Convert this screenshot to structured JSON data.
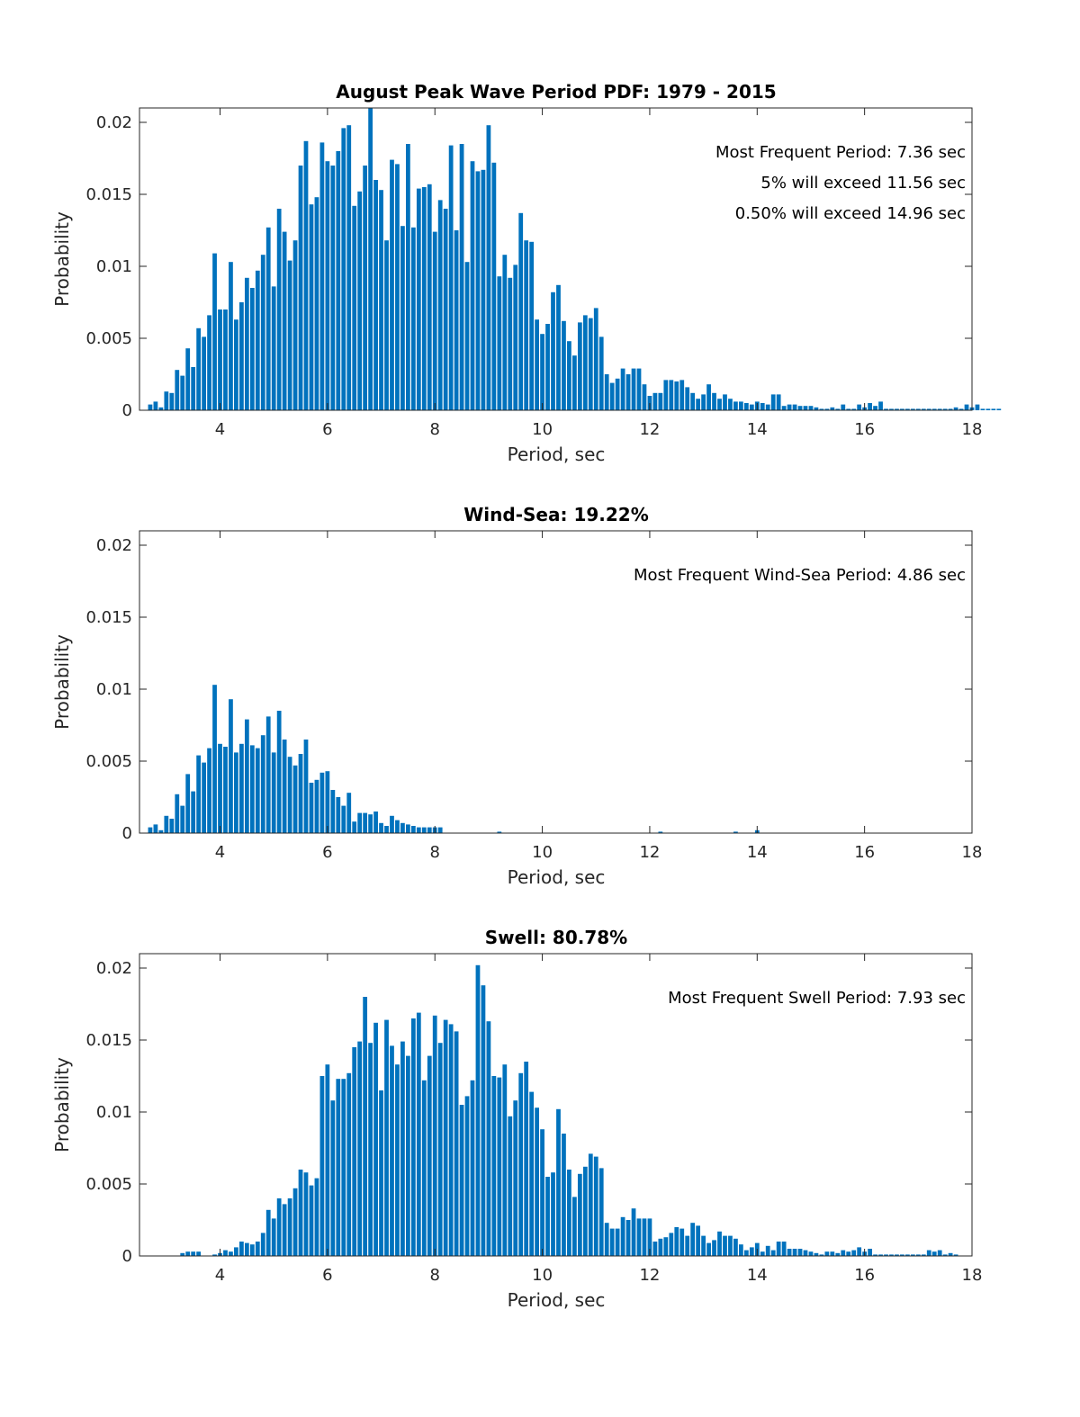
{
  "figure": {
    "bar_color": "#0072BD",
    "axis_color": "#262626",
    "background": "#ffffff"
  },
  "chart_data": [
    {
      "type": "bar",
      "title": "August Peak Wave Period PDF: 1979 - 2015",
      "xlabel": "Period, sec",
      "ylabel": "Probability",
      "xlim": [
        2.5,
        18
      ],
      "ylim": [
        0,
        0.021
      ],
      "xticks": [
        4,
        6,
        8,
        10,
        12,
        14,
        16,
        18
      ],
      "xtick_labels": [
        "4",
        "6",
        "8",
        "10",
        "12",
        "14",
        "16",
        "18"
      ],
      "yticks": [
        0,
        0.005,
        0.01,
        0.015,
        0.02
      ],
      "ytick_labels": [
        "0",
        "0.005",
        "0.01",
        "0.015",
        "0.02"
      ],
      "grid": false,
      "annotations": [
        "Most Frequent Period: 7.36 sec",
        "5% will exceed 11.56 sec",
        "0.50% will exceed 14.96 sec"
      ],
      "x_start": 2.7,
      "x_step": 0.1,
      "values": [
        0.0004,
        0.0006,
        0.0002,
        0.0013,
        0.0012,
        0.0028,
        0.0024,
        0.0043,
        0.003,
        0.0057,
        0.0051,
        0.0066,
        0.0109,
        0.007,
        0.007,
        0.0103,
        0.0063,
        0.0075,
        0.0092,
        0.0085,
        0.0097,
        0.0108,
        0.0127,
        0.0086,
        0.014,
        0.0124,
        0.0104,
        0.0118,
        0.017,
        0.0187,
        0.0143,
        0.0148,
        0.0186,
        0.0173,
        0.017,
        0.018,
        0.0196,
        0.0198,
        0.0142,
        0.0152,
        0.017,
        0.021,
        0.016,
        0.0153,
        0.0118,
        0.0174,
        0.0171,
        0.0128,
        0.0185,
        0.0127,
        0.0154,
        0.0155,
        0.0157,
        0.0124,
        0.0146,
        0.014,
        0.0184,
        0.0125,
        0.0185,
        0.0103,
        0.0173,
        0.0166,
        0.0167,
        0.0198,
        0.0172,
        0.0093,
        0.0108,
        0.0092,
        0.0101,
        0.0137,
        0.0118,
        0.0117,
        0.0063,
        0.0053,
        0.006,
        0.0082,
        0.0087,
        0.0062,
        0.0048,
        0.0038,
        0.0061,
        0.0066,
        0.0064,
        0.0071,
        0.0051,
        0.0025,
        0.0019,
        0.0022,
        0.0029,
        0.0025,
        0.0029,
        0.0029,
        0.0018,
        0.001,
        0.0012,
        0.0012,
        0.0021,
        0.0021,
        0.002,
        0.0021,
        0.0016,
        0.0012,
        0.0008,
        0.0011,
        0.0018,
        0.0012,
        0.0008,
        0.0011,
        0.0008,
        0.0006,
        0.0006,
        0.0005,
        0.0004,
        0.0006,
        0.0005,
        0.0004,
        0.0011,
        0.0011,
        0.0003,
        0.0004,
        0.0004,
        0.0003,
        0.0003,
        0.0003,
        0.0002,
        0.0001,
        0.0001,
        0.0002,
        0.0001,
        0.0004,
        0.0001,
        0.0001,
        0.0004,
        0.0002,
        0.0005,
        0.0003,
        0.0006,
        0.0001,
        0.0001,
        0.0001,
        0.0001,
        0.0001,
        0.0001,
        0.0001,
        0.0001,
        0.0001,
        0.0001,
        0.0001,
        0.0001,
        0.0001,
        0.0002,
        0.0001,
        0.0004,
        0.0002,
        0.0004,
        0.0001,
        0.0001,
        0.0001,
        0.0001
      ]
    },
    {
      "type": "bar",
      "title": "Wind-Sea: 19.22%",
      "xlabel": "Period, sec",
      "ylabel": "Probability",
      "xlim": [
        2.5,
        18
      ],
      "ylim": [
        0,
        0.021
      ],
      "xticks": [
        4,
        6,
        8,
        10,
        12,
        14,
        16,
        18
      ],
      "xtick_labels": [
        "4",
        "6",
        "8",
        "10",
        "12",
        "14",
        "16",
        "18"
      ],
      "yticks": [
        0,
        0.005,
        0.01,
        0.015,
        0.02
      ],
      "ytick_labels": [
        "0",
        "0.005",
        "0.01",
        "0.015",
        "0.02"
      ],
      "grid": false,
      "annotations": [
        "Most Frequent Wind-Sea Period: 4.86 sec"
      ],
      "x_start": 2.7,
      "x_step": 0.1,
      "values": [
        0.0004,
        0.0006,
        0.0002,
        0.0012,
        0.001,
        0.0027,
        0.0019,
        0.0041,
        0.0029,
        0.0054,
        0.0049,
        0.0059,
        0.0103,
        0.0062,
        0.006,
        0.0093,
        0.0056,
        0.0062,
        0.0079,
        0.0061,
        0.0059,
        0.0068,
        0.0081,
        0.0056,
        0.0085,
        0.0065,
        0.0053,
        0.0047,
        0.0055,
        0.0065,
        0.0035,
        0.0037,
        0.0042,
        0.0043,
        0.003,
        0.0025,
        0.0019,
        0.0028,
        0.0008,
        0.0014,
        0.0014,
        0.0013,
        0.0015,
        0.0007,
        0.0005,
        0.0012,
        0.0009,
        0.0007,
        0.0006,
        0.0005,
        0.0004,
        0.0004,
        0.0004,
        0.0004,
        0.0004,
        0,
        0,
        0,
        0,
        0,
        0,
        0,
        0,
        0,
        0,
        0.0001,
        0,
        0,
        0,
        0,
        0,
        0,
        0,
        0,
        0,
        0,
        0,
        0,
        0,
        0,
        0,
        0,
        0,
        0,
        0,
        0,
        0,
        0,
        0,
        0,
        0,
        0,
        0,
        0,
        0,
        0.0001,
        0,
        0,
        0,
        0,
        0,
        0,
        0,
        0,
        0,
        0,
        0,
        0,
        0,
        0.0001,
        0,
        0,
        0,
        0.0002
      ]
    },
    {
      "type": "bar",
      "title": "Swell: 80.78%",
      "xlabel": "Period, sec",
      "ylabel": "Probability",
      "xlim": [
        2.5,
        18
      ],
      "ylim": [
        0,
        0.021
      ],
      "xticks": [
        4,
        6,
        8,
        10,
        12,
        14,
        16,
        18
      ],
      "xtick_labels": [
        "4",
        "6",
        "8",
        "10",
        "12",
        "14",
        "16",
        "18"
      ],
      "yticks": [
        0,
        0.005,
        0.01,
        0.015,
        0.02
      ],
      "ytick_labels": [
        "0",
        "0.005",
        "0.01",
        "0.015",
        "0.02"
      ],
      "grid": false,
      "annotations": [
        "Most Frequent Swell Period: 7.93 sec"
      ],
      "x_start": 3.3,
      "x_step": 0.1,
      "values": [
        0.0002,
        0.0003,
        0.0003,
        0.0003,
        0,
        0,
        0.0001,
        0.0002,
        0.0004,
        0.0003,
        0.0006,
        0.001,
        0.0009,
        0.0008,
        0.001,
        0.0016,
        0.0032,
        0.0026,
        0.004,
        0.0036,
        0.004,
        0.0047,
        0.006,
        0.0058,
        0.0049,
        0.0054,
        0.0125,
        0.0133,
        0.0108,
        0.0123,
        0.0123,
        0.0127,
        0.0145,
        0.0149,
        0.018,
        0.0148,
        0.0162,
        0.0115,
        0.0164,
        0.0146,
        0.0133,
        0.0149,
        0.0139,
        0.0165,
        0.0169,
        0.0122,
        0.0139,
        0.0167,
        0.0148,
        0.0164,
        0.0161,
        0.0156,
        0.0105,
        0.0111,
        0.0122,
        0.0202,
        0.0188,
        0.0163,
        0.0125,
        0.0124,
        0.0133,
        0.0097,
        0.0108,
        0.0127,
        0.0135,
        0.0114,
        0.0103,
        0.0088,
        0.0055,
        0.0058,
        0.0102,
        0.0085,
        0.006,
        0.0041,
        0.0057,
        0.0062,
        0.0071,
        0.0069,
        0.0061,
        0.0023,
        0.0019,
        0.0019,
        0.0027,
        0.0025,
        0.0033,
        0.0026,
        0.0026,
        0.0026,
        0.001,
        0.0012,
        0.0013,
        0.0016,
        0.002,
        0.0019,
        0.0014,
        0.0023,
        0.0021,
        0.0014,
        0.0009,
        0.0011,
        0.0017,
        0.0014,
        0.0014,
        0.0012,
        0.0008,
        0.0004,
        0.0006,
        0.0009,
        0.0003,
        0.0007,
        0.0004,
        0.001,
        0.001,
        0.0005,
        0.0005,
        0.0005,
        0.0004,
        0.0003,
        0.0002,
        0.0001,
        0.0003,
        0.0003,
        0.0002,
        0.0004,
        0.0003,
        0.0004,
        0.0006,
        0.0003,
        0.0005,
        0.0001,
        0.0001,
        0.0001,
        0.0001,
        0.0001,
        0.0001,
        0.0001,
        0.0001,
        0.0001,
        0.0001,
        0.0004,
        0.0003,
        0.0004,
        0.0001,
        0.0002,
        0.0001
      ]
    }
  ]
}
